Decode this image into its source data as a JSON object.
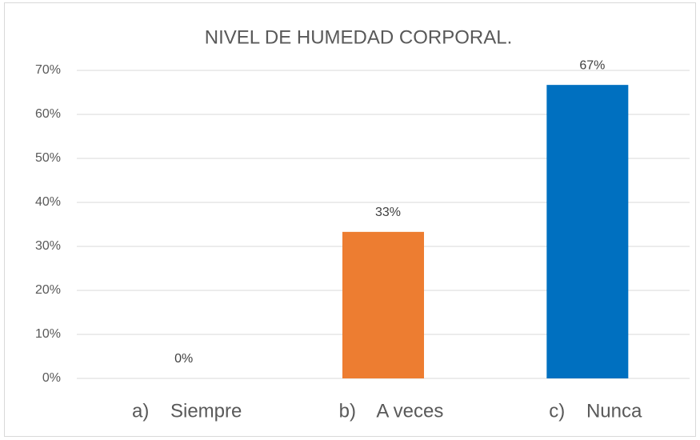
{
  "chart_data": {
    "type": "bar",
    "title": "NIVEL DE HUMEDAD CORPORAL.",
    "categories": [
      "a)    Siempre",
      "b)    A veces",
      "c)    Nunca"
    ],
    "values": [
      0,
      33.3,
      66.7
    ],
    "value_labels": [
      "0%",
      "33%",
      "67%"
    ],
    "colors": [
      "#4472c4",
      "#ed7d31",
      "#0070c0"
    ],
    "ylim": [
      0,
      70
    ],
    "yticks": [
      {
        "value": 0,
        "label": "0%"
      },
      {
        "value": 10,
        "label": "10%"
      },
      {
        "value": 20,
        "label": "20%"
      },
      {
        "value": 30,
        "label": "30%"
      },
      {
        "value": 40,
        "label": "40%"
      },
      {
        "value": 50,
        "label": "50%"
      },
      {
        "value": 60,
        "label": "60%"
      },
      {
        "value": 70,
        "label": "70%"
      }
    ],
    "grid": true
  }
}
